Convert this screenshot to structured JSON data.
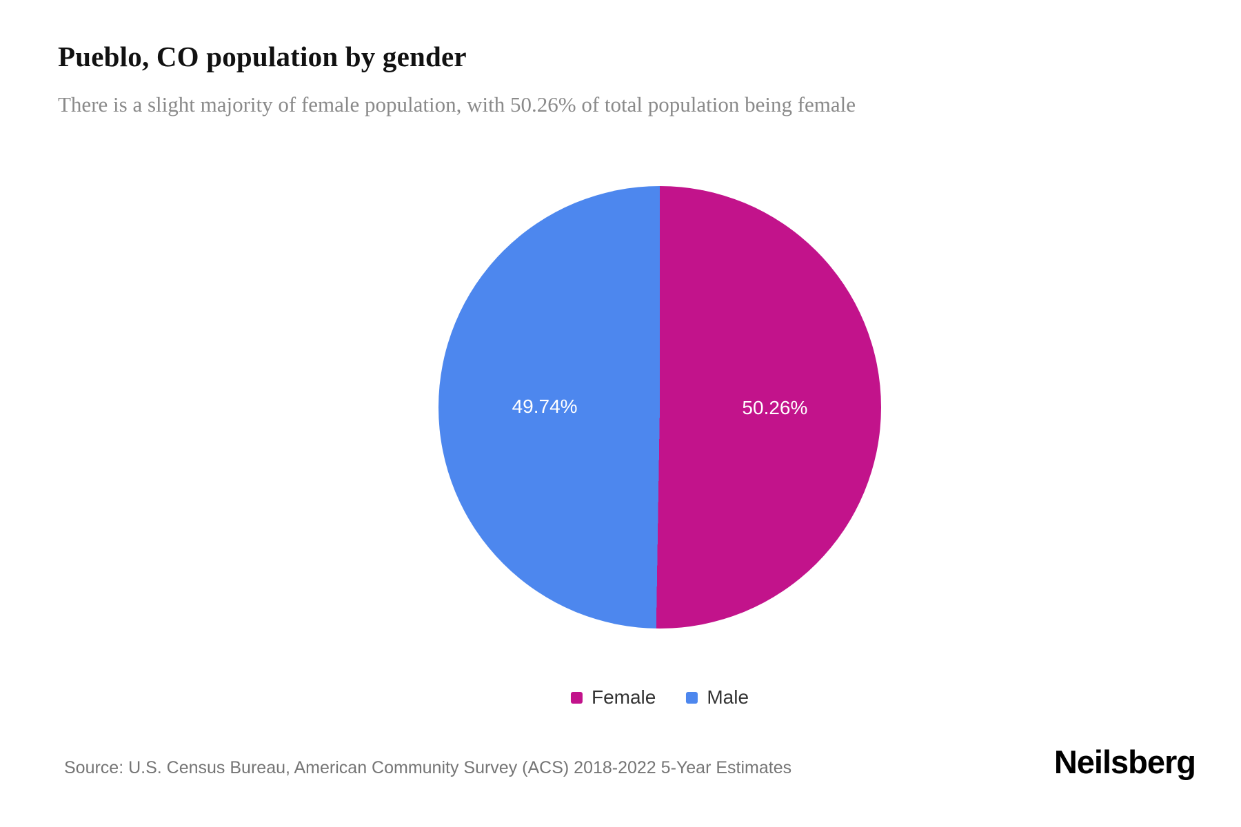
{
  "chart_data": {
    "type": "pie",
    "title": "Pueblo, CO population by gender",
    "subtitle": "There is a slight majority of female population, with 50.26% of total population being female",
    "start_angle_deg": 0,
    "direction": "clockwise",
    "legend_position": "bottom",
    "slices": [
      {
        "label": "Female",
        "value": 50.26,
        "display": "50.26%",
        "color": "#c2138b"
      },
      {
        "label": "Male",
        "value": 49.74,
        "display": "49.74%",
        "color": "#4d87ee"
      }
    ]
  },
  "footer": {
    "source": "Source: U.S. Census Bureau, American Community Survey (ACS) 2018-2022 5-Year Estimates",
    "brand": "Neilsberg"
  }
}
